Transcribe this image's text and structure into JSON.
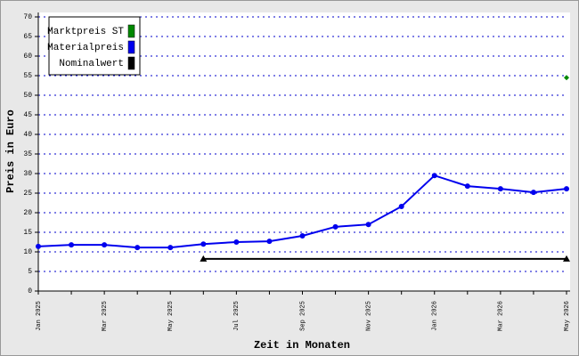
{
  "chart_data": {
    "type": "line",
    "xlabel": "Zeit in Monaten",
    "ylabel": "Preis in Euro",
    "categories": [
      "Jan 2025",
      null,
      "Mar 2025",
      null,
      "May 2025",
      null,
      "Jul 2025",
      null,
      "Sep 2025",
      null,
      "Nov 2025",
      null,
      "Jan 2026",
      null,
      "Mar 2026",
      null,
      "May 2026"
    ],
    "series": [
      {
        "name": "Marktpreis ST",
        "color": "#008800",
        "marker": "diamond",
        "values": [
          null,
          null,
          null,
          null,
          null,
          null,
          null,
          null,
          null,
          null,
          null,
          null,
          null,
          null,
          null,
          null,
          54.5
        ]
      },
      {
        "name": "Materialpreis",
        "color": "#0000ee",
        "marker": "circle",
        "values": [
          11.4,
          11.8,
          11.8,
          11.1,
          11.1,
          12.0,
          12.5,
          12.7,
          14.1,
          16.4,
          17.0,
          21.6,
          29.5,
          26.8,
          26.1,
          25.2,
          26.1
        ]
      },
      {
        "name": "Nominalwert",
        "color": "#000000",
        "marker": "triangle",
        "values": [
          null,
          null,
          null,
          null,
          null,
          8.2,
          8.2,
          8.2,
          8.2,
          8.2,
          8.2,
          8.2,
          8.2,
          8.2,
          8.2,
          8.2,
          8.2
        ]
      }
    ],
    "ylim": [
      0,
      70
    ],
    "yticks": [
      0,
      5,
      10,
      15,
      20,
      25,
      30,
      35,
      40,
      45,
      50,
      55,
      60,
      65,
      70
    ],
    "grid": true,
    "legend": "top-left"
  }
}
